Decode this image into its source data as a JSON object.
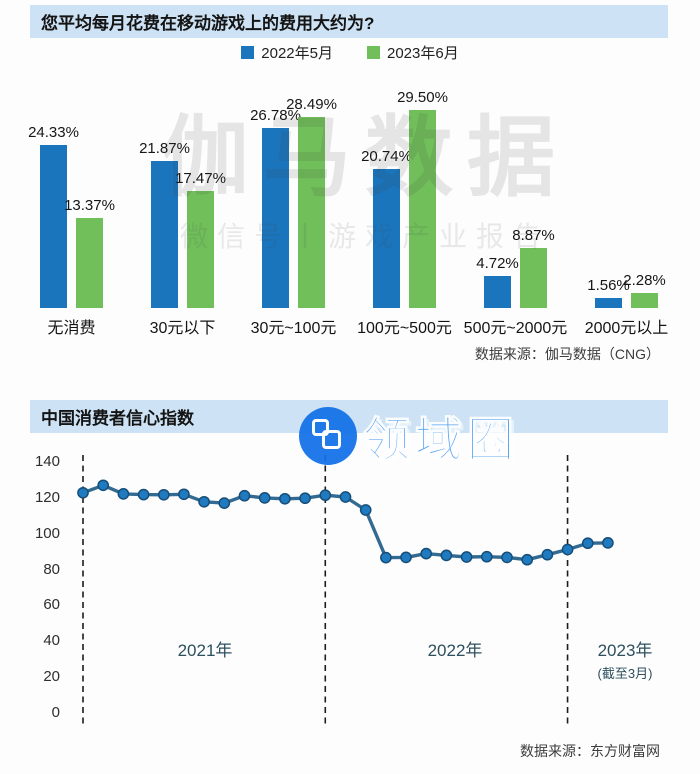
{
  "colors": {
    "series_blue": "#1b75bc",
    "series_green": "#71bf5b",
    "header_bg": "#cde2f4",
    "line_stroke": "#336a91",
    "marker_fill": "#1f7ac0",
    "marker_stroke": "#174e78",
    "divider": "#1c1c1c",
    "logo_blue": "#1270e8",
    "logo_text_blue": "#469bf3",
    "year_label": "#2d4f5e"
  },
  "bar_section": {
    "title": "您平均每月花费在移动游戏上的费用大约为?",
    "source": "数据来源：伽马数据（CNG）",
    "watermark_main": "伽马数据",
    "watermark_sub": "微信号丨游戏产业报告"
  },
  "line_section": {
    "title": "中国消费者信心指数",
    "source": "数据来源：东方财富网",
    "logo_text": "领域圈",
    "year_labels": [
      {
        "label": "2021年",
        "sublabel": ""
      },
      {
        "label": "2022年",
        "sublabel": ""
      },
      {
        "label": "2023年",
        "sublabel": "(截至3月)"
      }
    ]
  },
  "chart_data": [
    {
      "type": "bar",
      "title": "您平均每月花费在移动游戏上的费用大约为?",
      "categories": [
        "无消费",
        "30元以下",
        "30元~100元",
        "100元~500元",
        "500元~2000元",
        "2000元以上"
      ],
      "series": [
        {
          "name": "2022年5月",
          "color": "#1b75bc",
          "values": [
            24.33,
            21.87,
            26.78,
            20.74,
            4.72,
            1.56
          ]
        },
        {
          "name": "2023年6月",
          "color": "#71bf5b",
          "values": [
            13.37,
            17.47,
            28.49,
            29.5,
            8.87,
            2.28
          ]
        }
      ],
      "value_suffix": "%",
      "ylim": [
        0,
        30
      ],
      "legend_position": "top",
      "grid": false,
      "source": "数据来源：伽马数据（CNG）"
    },
    {
      "type": "line",
      "title": "中国消费者信心指数",
      "x": [
        "2021-01",
        "2021-02",
        "2021-03",
        "2021-04",
        "2021-05",
        "2021-06",
        "2021-07",
        "2021-08",
        "2021-09",
        "2021-10",
        "2021-11",
        "2021-12",
        "2022-01",
        "2022-02",
        "2022-03",
        "2022-04",
        "2022-05",
        "2022-06",
        "2022-07",
        "2022-08",
        "2022-09",
        "2022-10",
        "2022-11",
        "2022-12",
        "2023-01",
        "2023-02",
        "2023-03"
      ],
      "values": [
        122.8,
        127.0,
        122.2,
        121.8,
        121.7,
        122.0,
        117.8,
        117.1,
        121.2,
        120.0,
        119.5,
        119.8,
        121.5,
        120.5,
        113.2,
        86.7,
        86.8,
        88.9,
        87.9,
        87.0,
        87.2,
        86.8,
        85.5,
        88.3,
        91.2,
        94.7,
        94.9
      ],
      "ylim": [
        0,
        140
      ],
      "yticks": [
        0,
        20,
        40,
        60,
        80,
        100,
        120,
        140
      ],
      "segment_dividers_at": [
        "2021-01",
        "2022-01",
        "2023-01"
      ],
      "segment_labels": [
        "2021年",
        "2022年",
        "2023年(截至3月)"
      ],
      "grid": false,
      "legend_position": "none",
      "source": "数据来源：东方财富网"
    }
  ]
}
